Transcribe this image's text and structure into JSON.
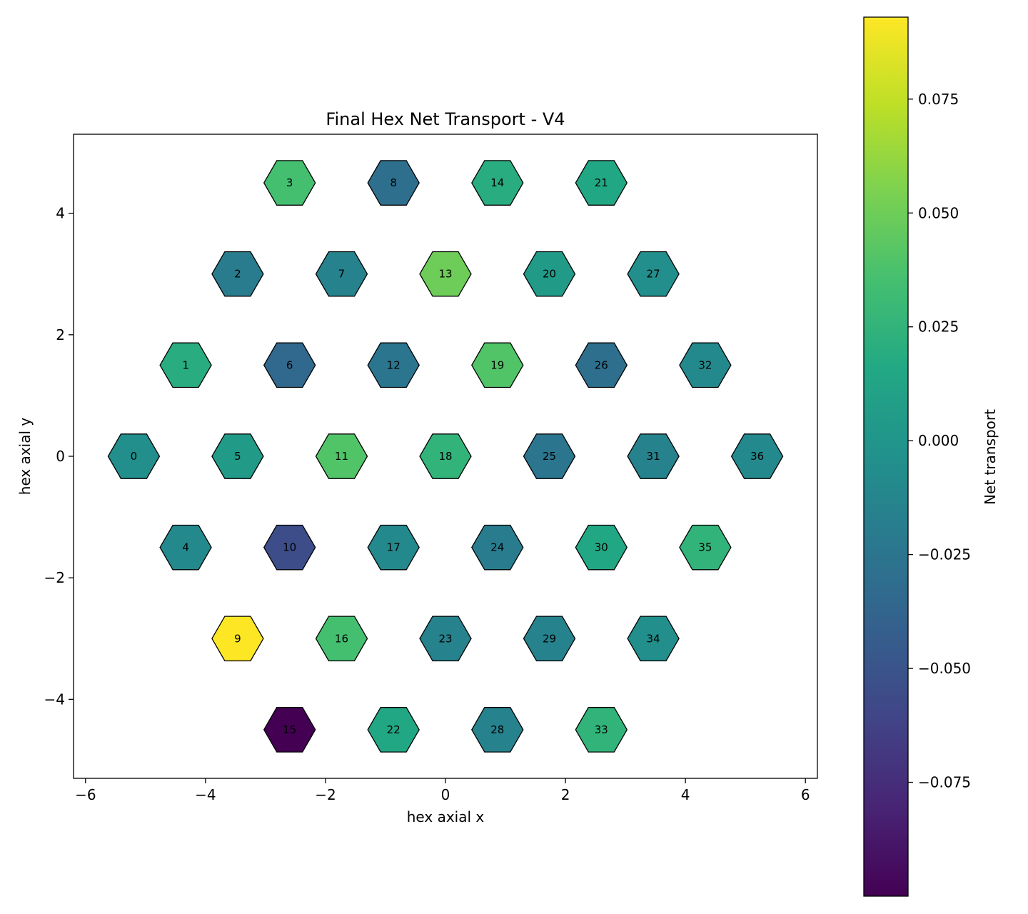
{
  "chart_data": {
    "type": "heatmap",
    "title": "Final Hex Net Transport - V4",
    "xlabel": "hex axial x",
    "ylabel": "hex axial y",
    "xlim": [
      -6.2,
      6.2
    ],
    "ylim": [
      -5.3,
      5.3
    ],
    "xticks": [
      -6,
      -4,
      -2,
      0,
      2,
      4,
      6
    ],
    "yticks": [
      -4,
      -2,
      0,
      2,
      4
    ],
    "colorbar": {
      "label": "Net transport",
      "min": -0.1,
      "max": 0.093,
      "ticks": [
        -0.075,
        -0.05,
        -0.025,
        0.0,
        0.025,
        0.05,
        0.075
      ],
      "tick_labels": [
        "−0.075",
        "−0.050",
        "−0.025",
        "0.000",
        "0.025",
        "0.050",
        "0.075"
      ],
      "colormap": "viridis"
    },
    "cells": [
      {
        "id": "0",
        "x": -5.196,
        "y": 0.0,
        "value": -0.005
      },
      {
        "id": "1",
        "x": -4.33,
        "y": 1.5,
        "value": 0.02
      },
      {
        "id": "2",
        "x": -3.464,
        "y": 3.0,
        "value": -0.02
      },
      {
        "id": "3",
        "x": -2.598,
        "y": 4.5,
        "value": 0.035
      },
      {
        "id": "4",
        "x": -4.33,
        "y": -1.5,
        "value": -0.01
      },
      {
        "id": "5",
        "x": -3.464,
        "y": 0.0,
        "value": 0.005
      },
      {
        "id": "6",
        "x": -2.598,
        "y": 1.5,
        "value": -0.035
      },
      {
        "id": "7",
        "x": -1.732,
        "y": 3.0,
        "value": -0.015
      },
      {
        "id": "8",
        "x": -0.866,
        "y": 4.5,
        "value": -0.03
      },
      {
        "id": "9",
        "x": -3.464,
        "y": -3.0,
        "value": 0.093
      },
      {
        "id": "10",
        "x": -2.598,
        "y": -1.5,
        "value": -0.055
      },
      {
        "id": "11",
        "x": -1.732,
        "y": 0.0,
        "value": 0.04
      },
      {
        "id": "12",
        "x": -0.866,
        "y": 1.5,
        "value": -0.025
      },
      {
        "id": "13",
        "x": 0.0,
        "y": 3.0,
        "value": 0.05
      },
      {
        "id": "14",
        "x": 0.866,
        "y": 4.5,
        "value": 0.02
      },
      {
        "id": "15",
        "x": -2.598,
        "y": -4.5,
        "value": -0.1
      },
      {
        "id": "16",
        "x": -1.732,
        "y": -3.0,
        "value": 0.035
      },
      {
        "id": "17",
        "x": -0.866,
        "y": -1.5,
        "value": -0.01
      },
      {
        "id": "18",
        "x": 0.0,
        "y": 0.0,
        "value": 0.025
      },
      {
        "id": "19",
        "x": 0.866,
        "y": 1.5,
        "value": 0.04
      },
      {
        "id": "20",
        "x": 1.732,
        "y": 3.0,
        "value": 0.005
      },
      {
        "id": "21",
        "x": 2.598,
        "y": 4.5,
        "value": 0.015
      },
      {
        "id": "22",
        "x": -0.866,
        "y": -4.5,
        "value": 0.015
      },
      {
        "id": "23",
        "x": 0.0,
        "y": -3.0,
        "value": -0.015
      },
      {
        "id": "24",
        "x": 0.866,
        "y": -1.5,
        "value": -0.02
      },
      {
        "id": "25",
        "x": 1.732,
        "y": 0.0,
        "value": -0.025
      },
      {
        "id": "26",
        "x": 2.598,
        "y": 1.5,
        "value": -0.03
      },
      {
        "id": "27",
        "x": 3.464,
        "y": 3.0,
        "value": -0.005
      },
      {
        "id": "28",
        "x": 0.866,
        "y": -4.5,
        "value": -0.015
      },
      {
        "id": "29",
        "x": 1.732,
        "y": -3.0,
        "value": -0.015
      },
      {
        "id": "30",
        "x": 2.598,
        "y": -1.5,
        "value": 0.015
      },
      {
        "id": "31",
        "x": 3.464,
        "y": 0.0,
        "value": -0.015
      },
      {
        "id": "32",
        "x": 4.33,
        "y": 1.5,
        "value": -0.01
      },
      {
        "id": "33",
        "x": 2.598,
        "y": -4.5,
        "value": 0.025
      },
      {
        "id": "34",
        "x": 3.464,
        "y": -3.0,
        "value": -0.005
      },
      {
        "id": "35",
        "x": 4.33,
        "y": -1.5,
        "value": 0.025
      },
      {
        "id": "36",
        "x": 5.196,
        "y": 0.0,
        "value": -0.01
      }
    ]
  }
}
